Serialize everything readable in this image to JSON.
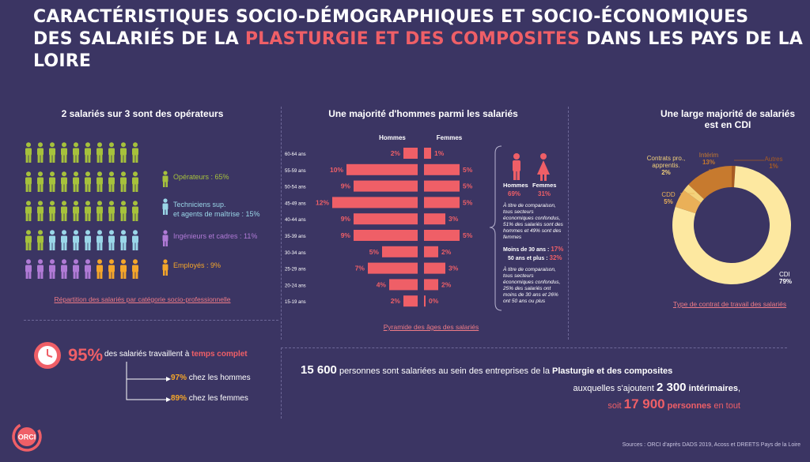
{
  "header": {
    "title_line1": "CARACTÉRISTIQUES SOCIO-DÉMOGRAPHIQUES ET SOCIO-ÉCONOMIQUES",
    "title_line2_a": "DES SALARIÉS DE LA ",
    "title_line2_highlight": "PLASTURGIE ET DES COMPOSITES",
    "title_line2_b": " DANS LES PAYS DE LA LOIRE"
  },
  "colors": {
    "background": "#3b3563",
    "accent": "#ef5f67",
    "operateurs": "#a6c13c",
    "techniciens": "#9ad6e8",
    "ingenieurs": "#b07ad6",
    "employes": "#f4a62a",
    "cdi": "#fde8a0",
    "interim": "#c77a2e"
  },
  "left": {
    "title": "2 salariés sur 3 sont des opérateurs",
    "legend": [
      {
        "label": "Opérateurs : 65%",
        "color": "#a6c13c"
      },
      {
        "label": "Techniciens sup.",
        "label2": "et agents de maîtrise : 15%",
        "color": "#9ad6e8"
      },
      {
        "label": "Ingénieurs et cadres : 11%",
        "color": "#b07ad6"
      },
      {
        "label": "Employés : 9%",
        "color": "#f4a62a"
      }
    ],
    "link": "Répartition des salariés par catégorie socio-professionnelle"
  },
  "fulltime": {
    "pct": "95%",
    "text_a": "des salariés travaillent à ",
    "text_b": "temps complet",
    "men_pct": "97%",
    "men_label": "chez les hommes",
    "women_pct": "89%",
    "women_label": "chez les femmes"
  },
  "pyramid": {
    "title": "Une majorité d'hommes parmi les salariés",
    "col_men": "Hommes",
    "col_women": "Femmes",
    "link": "Pyramide des âges des salariés"
  },
  "gender": {
    "men_label": "Hommes",
    "women_label": "Femmes",
    "men_pct": "69%",
    "women_pct": "31%",
    "note1": "À titre de comparaison, tous secteurs économiques confondus, 51% des salariés sont des hommes et 49% sont des femmes",
    "under30_label": "Moins de 30 ans :",
    "under30_pct": "17%",
    "over50_label": "50 ans et plus :",
    "over50_pct": "32%",
    "note2": "À titre de comparaison, tous secteurs économiques confondus, 25% des salariés ont moins de 30 ans et 26% ont 50 ans ou plus"
  },
  "contract": {
    "title_line1": "Une large majorité de salariés",
    "title_line2": "est en CDI",
    "link": "Type de contrat de travail des salariés"
  },
  "summary": {
    "n1": "15 600",
    "t1a": " personnes sont salariées au sein des entreprises de la ",
    "t1b": "Plasturgie et des composites",
    "t2a": "auxquelles s'ajoutent ",
    "n2": "2 300",
    "t2b": " intérimaires",
    "t2c": ",",
    "t3a": "soit ",
    "n3": "17 900",
    "t3b": " personnes",
    "t3c": " en tout"
  },
  "source": "Sources : ORCI d'après DADS 2019, Acoss et DREETS Pays de la Loire",
  "logo_text": "ORCI",
  "chart_data": [
    {
      "type": "bar",
      "orientation": "horizontal-pyramid",
      "title": "Une majorité d'hommes parmi les salariés",
      "categories": [
        "60-64 ans",
        "55-59 ans",
        "50-54 ans",
        "45-49 ans",
        "40-44 ans",
        "35-39 ans",
        "30-34 ans",
        "25-29 ans",
        "20-24 ans",
        "15-19 ans"
      ],
      "series": [
        {
          "name": "Hommes",
          "values": [
            2,
            10,
            9,
            12,
            9,
            9,
            5,
            7,
            4,
            2
          ],
          "labels": [
            "2%",
            "10%",
            "9%",
            "12%",
            "9%",
            "9%",
            "5%",
            "7%",
            "4%",
            "2%"
          ]
        },
        {
          "name": "Femmes",
          "values": [
            1,
            5,
            5,
            5,
            3,
            5,
            2,
            3,
            2,
            0
          ],
          "labels": [
            "1%",
            "5%",
            "5%",
            "5%",
            "3%",
            "5%",
            "2%",
            "3%",
            "2%",
            "0%"
          ]
        }
      ]
    },
    {
      "type": "pie",
      "style": "donut",
      "title": "Une large majorité de salariés est en CDI",
      "slices": [
        {
          "label": "CDI",
          "value": 79,
          "value_label": "79%",
          "color": "#fde8a0"
        },
        {
          "label": "Contrats pro., apprentis.",
          "value": 2,
          "value_label": "2%",
          "color": "#f4d27a"
        },
        {
          "label": "CDD",
          "value": 5,
          "value_label": "5%",
          "color": "#eab058"
        },
        {
          "label": "Intérim",
          "value": 13,
          "value_label": "13%",
          "color": "#c77a2e"
        },
        {
          "label": "Autres",
          "value": 1,
          "value_label": "1%",
          "color": "#a85b22"
        }
      ]
    },
    {
      "type": "pictogram",
      "title": "2 salariés sur 3 sont des opérateurs",
      "rows": 5,
      "cols": 10,
      "categories": [
        "Opérateurs",
        "Techniciens sup. et agents de maîtrise",
        "Ingénieurs et cadres",
        "Employés"
      ],
      "values": [
        65,
        15,
        11,
        9
      ]
    }
  ]
}
